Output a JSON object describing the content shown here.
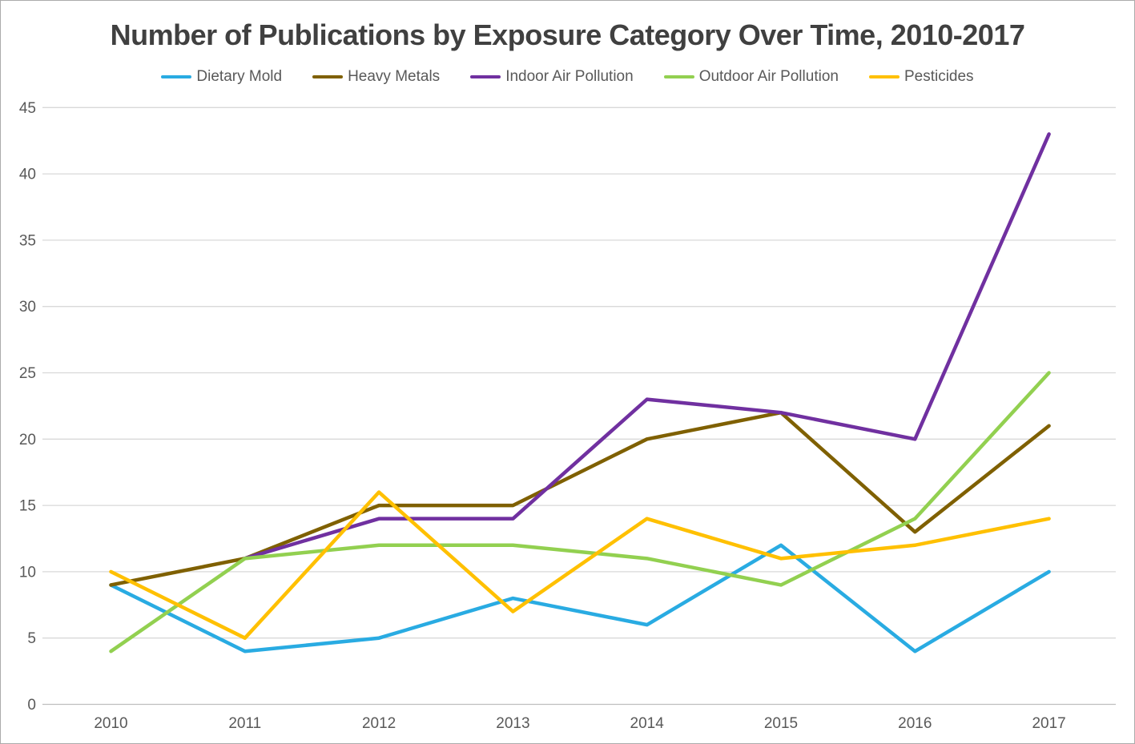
{
  "chart": {
    "title": "Number of Publications by Exposure Category Over Time, 2010-2017",
    "colors": {
      "grid": "#d9d9d9",
      "axis_line": "#bfbfbf",
      "title_text": "#404040",
      "axis_text": "#595959",
      "frame_border": "#ababab",
      "background": "#ffffff"
    }
  },
  "chart_data": {
    "type": "line",
    "title": "Number of Publications by Exposure Category Over Time, 2010-2017",
    "xlabel": "",
    "ylabel": "",
    "categories": [
      "2010",
      "2011",
      "2012",
      "2013",
      "2014",
      "2015",
      "2016",
      "2017"
    ],
    "series": [
      {
        "name": "Dietary Mold",
        "color": "#29abe2",
        "values": [
          9,
          4,
          5,
          8,
          6,
          12,
          4,
          10
        ]
      },
      {
        "name": "Heavy Metals",
        "color": "#7f6000",
        "values": [
          9,
          11,
          15,
          15,
          20,
          22,
          13,
          21
        ]
      },
      {
        "name": "Indoor Air Pollution",
        "color": "#7030a0",
        "values": [
          null,
          11,
          14,
          14,
          23,
          22,
          20,
          43
        ]
      },
      {
        "name": "Outdoor Air Pollution",
        "color": "#92d050",
        "values": [
          4,
          11,
          12,
          12,
          11,
          9,
          14,
          25
        ]
      },
      {
        "name": "Pesticides",
        "color": "#ffc000",
        "values": [
          10,
          5,
          16,
          7,
          14,
          11,
          12,
          14
        ]
      }
    ],
    "ylim": [
      0,
      45
    ],
    "ytick_step": 5,
    "grid": true,
    "legend_position": "top"
  }
}
